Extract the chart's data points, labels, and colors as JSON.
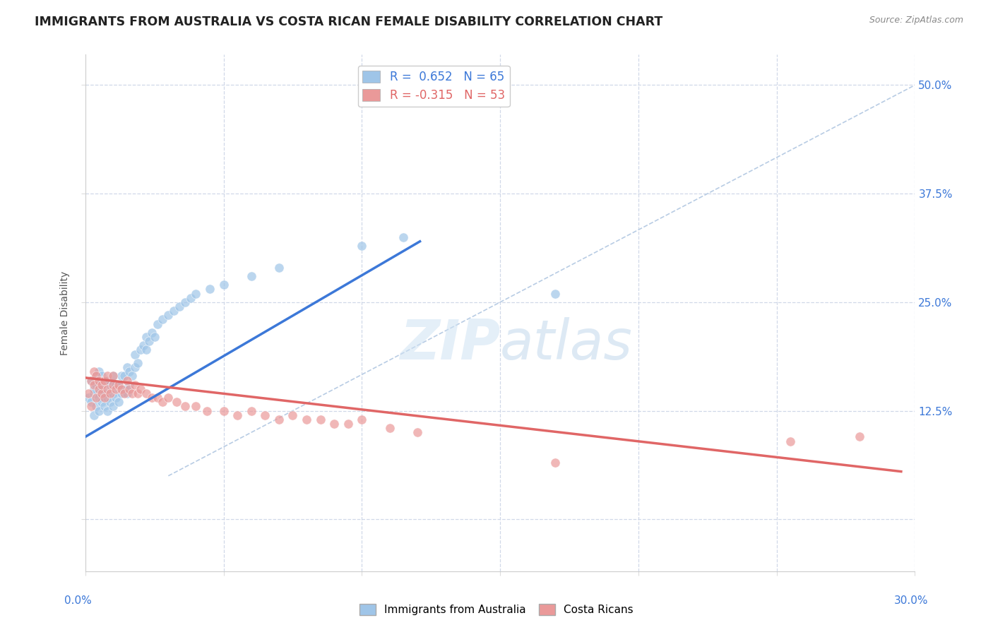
{
  "title": "IMMIGRANTS FROM AUSTRALIA VS COSTA RICAN FEMALE DISABILITY CORRELATION CHART",
  "source": "Source: ZipAtlas.com",
  "ylabel": "Female Disability",
  "ytick_vals": [
    0.0,
    0.125,
    0.25,
    0.375,
    0.5
  ],
  "ytick_labels": [
    "",
    "12.5%",
    "25.0%",
    "37.5%",
    "50.0%"
  ],
  "xmin": 0.0,
  "xmax": 0.3,
  "ymin": -0.06,
  "ymax": 0.535,
  "legend_blue_r": "0.652",
  "legend_blue_n": "65",
  "legend_pink_r": "-0.315",
  "legend_pink_n": "53",
  "blue_color": "#9fc5e8",
  "pink_color": "#ea9999",
  "blue_line_color": "#3c78d8",
  "pink_line_color": "#e06666",
  "background_color": "#ffffff",
  "blue_scatter_x": [
    0.001,
    0.002,
    0.002,
    0.003,
    0.003,
    0.003,
    0.004,
    0.004,
    0.004,
    0.005,
    0.005,
    0.005,
    0.005,
    0.006,
    0.006,
    0.006,
    0.007,
    0.007,
    0.007,
    0.008,
    0.008,
    0.008,
    0.009,
    0.009,
    0.01,
    0.01,
    0.01,
    0.011,
    0.011,
    0.012,
    0.012,
    0.013,
    0.013,
    0.014,
    0.014,
    0.015,
    0.015,
    0.016,
    0.016,
    0.017,
    0.018,
    0.018,
    0.019,
    0.02,
    0.021,
    0.022,
    0.022,
    0.023,
    0.024,
    0.025,
    0.026,
    0.028,
    0.03,
    0.032,
    0.034,
    0.036,
    0.038,
    0.04,
    0.045,
    0.05,
    0.06,
    0.07,
    0.1,
    0.115,
    0.17
  ],
  "blue_scatter_y": [
    0.14,
    0.135,
    0.16,
    0.12,
    0.145,
    0.15,
    0.13,
    0.155,
    0.165,
    0.125,
    0.14,
    0.155,
    0.17,
    0.135,
    0.15,
    0.165,
    0.13,
    0.145,
    0.16,
    0.125,
    0.14,
    0.16,
    0.135,
    0.155,
    0.13,
    0.145,
    0.165,
    0.14,
    0.155,
    0.135,
    0.155,
    0.145,
    0.165,
    0.15,
    0.165,
    0.145,
    0.175,
    0.155,
    0.17,
    0.165,
    0.175,
    0.19,
    0.18,
    0.195,
    0.2,
    0.195,
    0.21,
    0.205,
    0.215,
    0.21,
    0.225,
    0.23,
    0.235,
    0.24,
    0.245,
    0.25,
    0.255,
    0.26,
    0.265,
    0.27,
    0.28,
    0.29,
    0.315,
    0.325,
    0.26
  ],
  "pink_scatter_x": [
    0.001,
    0.002,
    0.002,
    0.003,
    0.003,
    0.004,
    0.004,
    0.005,
    0.005,
    0.006,
    0.006,
    0.007,
    0.007,
    0.008,
    0.008,
    0.009,
    0.01,
    0.01,
    0.011,
    0.012,
    0.013,
    0.014,
    0.015,
    0.016,
    0.017,
    0.018,
    0.019,
    0.02,
    0.022,
    0.024,
    0.026,
    0.028,
    0.03,
    0.033,
    0.036,
    0.04,
    0.044,
    0.05,
    0.055,
    0.06,
    0.065,
    0.07,
    0.075,
    0.08,
    0.085,
    0.09,
    0.095,
    0.1,
    0.11,
    0.12,
    0.17,
    0.255,
    0.28
  ],
  "pink_scatter_y": [
    0.145,
    0.16,
    0.13,
    0.155,
    0.17,
    0.14,
    0.165,
    0.15,
    0.16,
    0.145,
    0.155,
    0.14,
    0.16,
    0.15,
    0.165,
    0.145,
    0.155,
    0.165,
    0.15,
    0.155,
    0.15,
    0.145,
    0.16,
    0.15,
    0.145,
    0.155,
    0.145,
    0.15,
    0.145,
    0.14,
    0.14,
    0.135,
    0.14,
    0.135,
    0.13,
    0.13,
    0.125,
    0.125,
    0.12,
    0.125,
    0.12,
    0.115,
    0.12,
    0.115,
    0.115,
    0.11,
    0.11,
    0.115,
    0.105,
    0.1,
    0.065,
    0.09,
    0.095
  ],
  "blue_trend_x": [
    0.0,
    0.121
  ],
  "blue_trend_y": [
    0.095,
    0.32
  ],
  "pink_trend_x": [
    0.0,
    0.295
  ],
  "pink_trend_y": [
    0.163,
    0.055
  ],
  "diag_line_x": [
    0.03,
    0.3
  ],
  "diag_line_y": [
    0.05,
    0.5
  ],
  "fig_width": 14.06,
  "fig_height": 8.92
}
